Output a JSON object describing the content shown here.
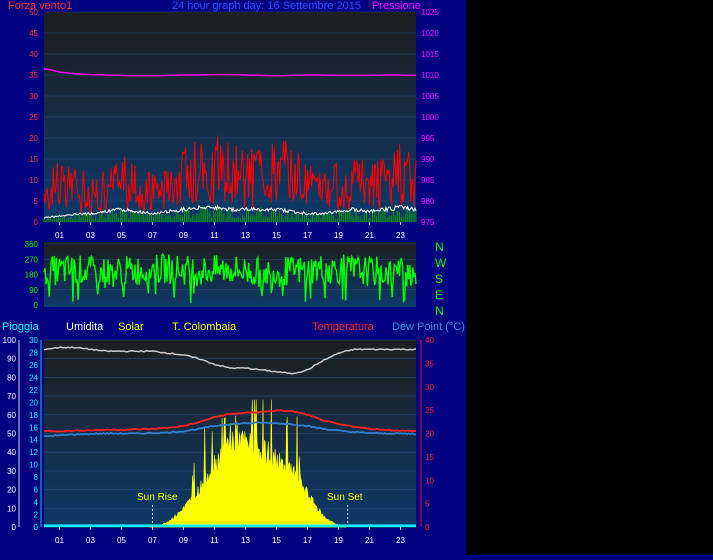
{
  "colors": {
    "background": "#000080",
    "plot_top": "#1e1e1e",
    "plot_bottom": "#0d3a6a",
    "wind": "#ff0000",
    "wind_avg": "#ffffff",
    "gust_bars": "#00a000",
    "pressure": "#ff00ff",
    "direction": "#00ff00",
    "humidity": "#c8c8c8",
    "temperature": "#ff2020",
    "dew_point": "#2f7fd0",
    "solar": "#ffff00",
    "rain": "#00ffff",
    "left_axis_text": "#ff3030",
    "cyan_axis_text": "#00ffff",
    "white_axis_text": "#ffffff"
  },
  "top_panel": {
    "left_label": "Forza vento1",
    "title": "24 hour graph day: 16 Settembre 2015",
    "right_label": "Pressione"
  },
  "dir_panel": {
    "compass": [
      "N",
      "W",
      "S",
      "E",
      "N"
    ]
  },
  "bottom_panel": {
    "legend": {
      "rain": "Pioggia",
      "humidity": "Umidita",
      "solar": "Solar",
      "colombaia": "T. Colombaia",
      "temperature": "Temperatura",
      "dew_point": "Dew Point (°C)"
    },
    "sunrise": "Sun Rise",
    "sunset": "Sun Set"
  },
  "chart_data": [
    {
      "type": "line",
      "name": "wind",
      "title": "24 hour graph day: 16 Settembre 2015",
      "xlabel": "",
      "ylabel": "Forza vento1",
      "y2label": "Pressione",
      "x_ticks": [
        "01",
        "03",
        "05",
        "07",
        "09",
        "11",
        "13",
        "15",
        "17",
        "19",
        "21",
        "23"
      ],
      "xlim": [
        0,
        24
      ],
      "ylim": [
        0,
        50
      ],
      "y_ticks": [
        0,
        5,
        10,
        15,
        20,
        25,
        30,
        35,
        40,
        45,
        50
      ],
      "y2lim": [
        975,
        1025
      ],
      "y2_ticks": [
        975,
        980,
        985,
        990,
        995,
        1000,
        1005,
        1010,
        1015,
        1020,
        1025
      ],
      "series": [
        {
          "name": "Forza vento1",
          "kind": "gust",
          "x": [
            0,
            1,
            2,
            3,
            4,
            5,
            6,
            7,
            8,
            9,
            10,
            11,
            12,
            13,
            14,
            15,
            16,
            17,
            18,
            19,
            20,
            21,
            22,
            23,
            24
          ],
          "y": [
            8,
            10,
            9,
            8,
            9,
            11,
            10,
            8,
            9,
            13,
            14,
            15,
            13,
            12,
            14,
            13,
            14,
            10,
            9,
            10,
            11,
            10,
            12,
            13,
            11
          ]
        },
        {
          "name": "average",
          "kind": "avg",
          "x": [
            0,
            1,
            2,
            3,
            4,
            5,
            6,
            7,
            8,
            9,
            10,
            11,
            12,
            13,
            14,
            15,
            16,
            17,
            18,
            19,
            20,
            21,
            22,
            23,
            24
          ],
          "y": [
            1,
            1.5,
            1.8,
            2,
            2.5,
            3,
            2.5,
            2,
            2.5,
            3,
            3.5,
            3.5,
            3,
            3,
            3,
            3,
            2.5,
            2,
            2,
            2.5,
            3,
            2.5,
            3,
            3.5,
            3
          ]
        },
        {
          "name": "Pressione",
          "kind": "pressure",
          "axis": "right",
          "x": [
            0,
            0.5,
            1,
            2,
            3,
            4,
            5,
            6,
            7,
            8,
            9,
            10,
            11,
            12,
            13,
            14,
            15,
            16,
            17,
            18,
            19,
            20,
            21,
            22,
            23,
            24
          ],
          "y": [
            1011.5,
            1011.2,
            1010.7,
            1010.3,
            1010.1,
            1010,
            1009.9,
            1009.8,
            1009.8,
            1009.9,
            1010,
            1010,
            1010.1,
            1010.1,
            1010,
            1009.9,
            1009.8,
            1009.9,
            1010,
            1010,
            1009.9,
            1009.9,
            1009.9,
            1010,
            1010,
            1009.9
          ]
        }
      ]
    },
    {
      "type": "line",
      "name": "wind direction",
      "x_ticks": [],
      "ylim": [
        0,
        360
      ],
      "y_ticks": [
        0,
        90,
        180,
        270,
        360
      ],
      "series": [
        {
          "name": "direction",
          "x": [
            0,
            2,
            4,
            6,
            8,
            10,
            12,
            14,
            16,
            18,
            20,
            22,
            24
          ],
          "y": [
            200,
            210,
            190,
            205,
            215,
            200,
            210,
            190,
            200,
            215,
            205,
            195,
            200
          ]
        }
      ]
    },
    {
      "type": "line",
      "name": "temperature and solar",
      "x_ticks": [
        "01",
        "03",
        "05",
        "07",
        "09",
        "11",
        "13",
        "15",
        "17",
        "19",
        "21",
        "23"
      ],
      "xlim": [
        0,
        24
      ],
      "ylim_percent": [
        0,
        100
      ],
      "y_ticks_percent": [
        0,
        10,
        20,
        30,
        40,
        50,
        60,
        70,
        80,
        90,
        100
      ],
      "ylim_rain": [
        0,
        30
      ],
      "y_ticks_rain": [
        0,
        2,
        4,
        6,
        8,
        10,
        12,
        14,
        16,
        18,
        20,
        22,
        24,
        26,
        28,
        30
      ],
      "ylim_temp": [
        0,
        40
      ],
      "y_ticks_temp": [
        0,
        5,
        10,
        15,
        20,
        25,
        30,
        35,
        40
      ],
      "sunrise_hour": 7,
      "sunset_hour": 19.6,
      "series": [
        {
          "name": "Umidita",
          "axis": "percent",
          "x": [
            0,
            1,
            2,
            3,
            4,
            5,
            6,
            7,
            8,
            9,
            10,
            11,
            12,
            13,
            14,
            15,
            16,
            17,
            18,
            19,
            20,
            21,
            22,
            23,
            24
          ],
          "y": [
            95,
            96,
            96,
            95,
            94,
            94,
            94,
            94,
            93,
            92,
            90,
            87,
            85,
            85,
            84,
            83,
            82,
            84,
            89,
            93,
            95,
            95,
            95,
            95,
            95
          ]
        },
        {
          "name": "Temperatura",
          "axis": "temp",
          "x": [
            0,
            1,
            2,
            3,
            4,
            5,
            6,
            7,
            8,
            9,
            10,
            11,
            12,
            13,
            14,
            15,
            16,
            17,
            18,
            19,
            20,
            21,
            22,
            23,
            24
          ],
          "y": [
            20.5,
            20.5,
            20.6,
            20.7,
            20.8,
            20.8,
            20.9,
            21,
            21.2,
            21.6,
            22.4,
            23.5,
            24.2,
            24.4,
            24.6,
            24.9,
            24.8,
            24,
            22.8,
            22,
            21.5,
            21,
            20.8,
            20.6,
            20.5
          ]
        },
        {
          "name": "Dew Point (°C)",
          "axis": "temp",
          "x": [
            0,
            1,
            2,
            3,
            4,
            5,
            6,
            7,
            8,
            9,
            10,
            11,
            12,
            13,
            14,
            15,
            16,
            17,
            18,
            19,
            20,
            21,
            22,
            23,
            24
          ],
          "y": [
            19.4,
            19.6,
            19.8,
            19.9,
            20,
            20,
            20,
            20.1,
            20.2,
            20.5,
            21,
            21.6,
            22,
            22.2,
            22.3,
            22.2,
            22,
            21.6,
            21,
            20.6,
            20.3,
            20.1,
            20,
            20,
            19.9
          ]
        },
        {
          "name": "Solar",
          "axis": "percent",
          "x": [
            6.8,
            7.5,
            8,
            8.5,
            9,
            9.5,
            10,
            10.5,
            11,
            11.5,
            12,
            12.5,
            13,
            13.5,
            14,
            14.5,
            15,
            15.5,
            16,
            16.5,
            17,
            17.5,
            18,
            18.5,
            19,
            19.5
          ],
          "y": [
            0,
            1,
            3,
            6,
            10,
            15,
            20,
            28,
            35,
            40,
            46,
            48,
            45,
            44,
            42,
            40,
            36,
            33,
            30,
            25,
            18,
            12,
            6,
            3,
            1,
            0
          ]
        },
        {
          "name": "Pioggia",
          "axis": "rain",
          "x": [
            0,
            24
          ],
          "y": [
            0.2,
            0.2
          ]
        }
      ]
    }
  ]
}
